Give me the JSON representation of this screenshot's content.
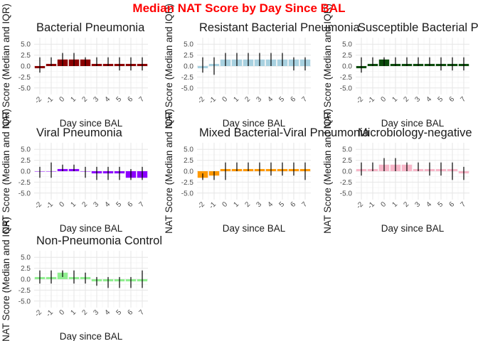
{
  "title": "Median NAT Score by Day Since BAL",
  "chart_data": {
    "type": "bar",
    "title": "Median NAT Score by Day Since BAL",
    "xlabel": "Day since BAL",
    "ylabel": "NAT Score (Median and IQR)",
    "categories": [
      "-2",
      "-1",
      "0",
      "1",
      "2",
      "3",
      "4",
      "5",
      "6",
      "7"
    ],
    "ylim": [
      -6.5,
      6.5
    ],
    "yticks": [
      -5.0,
      -2.5,
      0.0,
      2.5,
      5.0
    ],
    "ytick_labels": [
      "-5.0",
      "-2.5",
      "0.0",
      "2.5",
      "5.0"
    ],
    "grid": true,
    "panels": [
      {
        "title": "Bacterial Pneumonia",
        "color": "#8B0000",
        "values": [
          -0.5,
          0.5,
          1.5,
          1.5,
          1.5,
          0.5,
          0.5,
          0.5,
          0.5,
          0.5
        ],
        "iqr": [
          [
            -1.5,
            2.0
          ],
          [
            0.0,
            2.0
          ],
          [
            0.0,
            3.0
          ],
          [
            0.0,
            3.0
          ],
          [
            0.0,
            2.0
          ],
          [
            0.0,
            2.0
          ],
          [
            0.0,
            2.0
          ],
          [
            -1.0,
            2.0
          ],
          [
            -1.0,
            2.0
          ],
          [
            -1.0,
            2.0
          ]
        ]
      },
      {
        "title": "Resistant Bacterial Pneumonia",
        "color": "#A8D1E0",
        "values": [
          -0.5,
          0.5,
          1.5,
          1.5,
          1.5,
          1.5,
          1.5,
          1.5,
          1.5,
          1.5
        ],
        "iqr": [
          [
            -1.5,
            2.0
          ],
          [
            -2.0,
            2.0
          ],
          [
            0.0,
            3.0
          ],
          [
            0.0,
            3.0
          ],
          [
            0.0,
            3.0
          ],
          [
            0.0,
            3.0
          ],
          [
            0.0,
            3.0
          ],
          [
            0.0,
            3.0
          ],
          [
            -1.0,
            2.0
          ],
          [
            -1.0,
            2.0
          ]
        ]
      },
      {
        "title": "Susceptible Bacterial Pneumonia",
        "color": "#0B4B0B",
        "values": [
          -0.5,
          0.5,
          1.5,
          0.5,
          0.5,
          0.5,
          0.5,
          0.5,
          0.5,
          0.5
        ],
        "iqr": [
          [
            -1.5,
            2.0
          ],
          [
            0.0,
            2.0
          ],
          [
            0.0,
            2.0
          ],
          [
            0.0,
            2.0
          ],
          [
            0.0,
            2.0
          ],
          [
            0.0,
            2.0
          ],
          [
            0.0,
            2.0
          ],
          [
            -1.0,
            2.0
          ],
          [
            -1.0,
            2.0
          ],
          [
            -1.0,
            2.0
          ]
        ]
      },
      {
        "title": "Viral Pneumonia",
        "color": "#8C00FF",
        "values": [
          0.0,
          0.0,
          0.5,
          0.5,
          0.0,
          -0.5,
          -0.5,
          -0.5,
          -1.5,
          -1.5
        ],
        "iqr": [
          [
            -1.5,
            1.0
          ],
          [
            -1.5,
            2.0
          ],
          [
            0.0,
            1.5
          ],
          [
            0.0,
            1.5
          ],
          [
            -1.5,
            1.0
          ],
          [
            -2.0,
            1.0
          ],
          [
            -2.0,
            1.0
          ],
          [
            -2.0,
            1.0
          ],
          [
            -2.0,
            0.5
          ],
          [
            -2.0,
            1.0
          ]
        ]
      },
      {
        "title": "Mixed Bacterial-Viral Pneumonia",
        "color": "#FF9900",
        "values": [
          -1.5,
          -1.0,
          0.5,
          0.5,
          0.5,
          0.5,
          0.5,
          0.5,
          0.5,
          0.5
        ],
        "iqr": [
          [
            -2.0,
            -0.5
          ],
          [
            -2.0,
            0.0
          ],
          [
            -2.0,
            2.0
          ],
          [
            0.0,
            2.0
          ],
          [
            0.0,
            2.0
          ],
          [
            -1.0,
            2.0
          ],
          [
            -1.0,
            2.0
          ],
          [
            -1.0,
            2.0
          ],
          [
            -1.0,
            2.0
          ],
          [
            -2.0,
            2.0
          ]
        ]
      },
      {
        "title": "Microbiology-negative",
        "color": "#F7B6C8",
        "values": [
          0.5,
          0.5,
          1.5,
          1.5,
          1.5,
          0.5,
          0.5,
          0.5,
          0.5,
          -0.5
        ],
        "iqr": [
          [
            -1.0,
            2.0
          ],
          [
            0.0,
            2.0
          ],
          [
            0.0,
            3.0
          ],
          [
            0.0,
            3.0
          ],
          [
            0.0,
            2.0
          ],
          [
            0.0,
            2.0
          ],
          [
            -1.0,
            2.0
          ],
          [
            -1.0,
            2.0
          ],
          [
            -2.0,
            2.0
          ],
          [
            -2.0,
            1.0
          ]
        ]
      },
      {
        "title": "Non-Pneumonia Control",
        "color": "#90EE90",
        "values": [
          0.5,
          0.5,
          1.5,
          0.5,
          0.5,
          -0.5,
          -0.5,
          -0.5,
          -0.5,
          -0.5
        ],
        "iqr": [
          [
            -1.0,
            2.0
          ],
          [
            -1.0,
            2.0
          ],
          [
            0.5,
            2.0
          ],
          [
            -1.0,
            2.0
          ],
          [
            -1.0,
            1.5
          ],
          [
            -1.5,
            0.5
          ],
          [
            -2.0,
            0.5
          ],
          [
            -2.0,
            0.5
          ],
          [
            -2.0,
            0.5
          ],
          [
            -2.0,
            2.0
          ]
        ]
      }
    ]
  }
}
